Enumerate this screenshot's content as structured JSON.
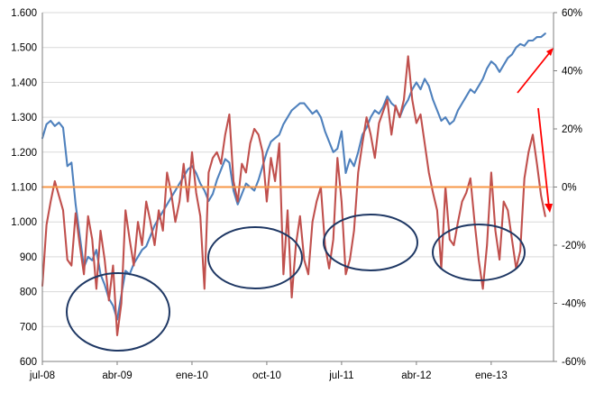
{
  "chart_data": {
    "type": "line",
    "grid": "horizontal",
    "legend": "none",
    "x_tick_labels": [
      "jul-08",
      "abr-09",
      "ene-10",
      "oct-10",
      "jul-11",
      "abr-12",
      "ene-13"
    ],
    "y_left": {
      "ylim": [
        600,
        1600
      ],
      "ticks": [
        600,
        700,
        800,
        900,
        1000,
        1100,
        1200,
        1300,
        1400,
        1500,
        1600
      ],
      "tick_labels": [
        "600",
        "700",
        "800",
        "900",
        "1.000",
        "1.100",
        "1.200",
        "1.300",
        "1.400",
        "1.500",
        "1.600"
      ]
    },
    "y_right": {
      "ylim": [
        -60,
        60
      ],
      "ticks": [
        -60,
        -40,
        -20,
        0,
        20,
        40,
        60
      ],
      "tick_labels": [
        "-60%",
        "-40%",
        "-20%",
        "0%",
        "20%",
        "40%",
        "60%"
      ]
    },
    "time_unit": "months since jul-08",
    "series": [
      {
        "color": "#4f81bd",
        "axis": "left",
        "points": [
          [
            0,
            1240
          ],
          [
            0.5,
            1280
          ],
          [
            1,
            1290
          ],
          [
            1.5,
            1275
          ],
          [
            2,
            1285
          ],
          [
            2.5,
            1270
          ],
          [
            3,
            1160
          ],
          [
            3.5,
            1170
          ],
          [
            4,
            1050
          ],
          [
            4.5,
            960
          ],
          [
            5,
            870
          ],
          [
            5.5,
            900
          ],
          [
            6,
            890
          ],
          [
            6.5,
            920
          ],
          [
            7,
            850
          ],
          [
            7.5,
            820
          ],
          [
            8,
            780
          ],
          [
            8.5,
            760
          ],
          [
            9,
            720
          ],
          [
            9.5,
            790
          ],
          [
            10,
            860
          ],
          [
            10.5,
            850
          ],
          [
            11,
            880
          ],
          [
            11.5,
            900
          ],
          [
            12,
            920
          ],
          [
            12.5,
            930
          ],
          [
            13,
            960
          ],
          [
            13.5,
            990
          ],
          [
            14,
            1010
          ],
          [
            14.5,
            1030
          ],
          [
            15,
            1050
          ],
          [
            15.5,
            1070
          ],
          [
            16,
            1090
          ],
          [
            16.5,
            1110
          ],
          [
            17,
            1130
          ],
          [
            17.5,
            1150
          ],
          [
            18,
            1160
          ],
          [
            18.5,
            1140
          ],
          [
            19,
            1110
          ],
          [
            19.5,
            1090
          ],
          [
            20,
            1060
          ],
          [
            20.5,
            1080
          ],
          [
            21,
            1120
          ],
          [
            21.5,
            1150
          ],
          [
            22,
            1180
          ],
          [
            22.5,
            1170
          ],
          [
            23,
            1090
          ],
          [
            23.5,
            1050
          ],
          [
            24,
            1080
          ],
          [
            24.5,
            1110
          ],
          [
            25,
            1100
          ],
          [
            25.5,
            1090
          ],
          [
            26,
            1120
          ],
          [
            26.5,
            1160
          ],
          [
            27,
            1200
          ],
          [
            27.5,
            1230
          ],
          [
            28,
            1240
          ],
          [
            28.5,
            1250
          ],
          [
            29,
            1280
          ],
          [
            29.5,
            1300
          ],
          [
            30,
            1320
          ],
          [
            30.5,
            1330
          ],
          [
            31,
            1340
          ],
          [
            31.5,
            1340
          ],
          [
            32,
            1325
          ],
          [
            32.5,
            1310
          ],
          [
            33,
            1320
          ],
          [
            33.5,
            1300
          ],
          [
            34,
            1260
          ],
          [
            34.5,
            1230
          ],
          [
            35,
            1200
          ],
          [
            35.5,
            1210
          ],
          [
            36,
            1260
          ],
          [
            36.5,
            1140
          ],
          [
            37,
            1180
          ],
          [
            37.5,
            1160
          ],
          [
            38,
            1200
          ],
          [
            38.5,
            1250
          ],
          [
            39,
            1270
          ],
          [
            39.5,
            1300
          ],
          [
            40,
            1320
          ],
          [
            40.5,
            1310
          ],
          [
            41,
            1330
          ],
          [
            41.5,
            1360
          ],
          [
            42,
            1340
          ],
          [
            42.5,
            1330
          ],
          [
            43,
            1300
          ],
          [
            43.5,
            1330
          ],
          [
            44,
            1350
          ],
          [
            44.5,
            1380
          ],
          [
            45,
            1400
          ],
          [
            45.5,
            1380
          ],
          [
            46,
            1410
          ],
          [
            46.5,
            1390
          ],
          [
            47,
            1350
          ],
          [
            47.5,
            1320
          ],
          [
            48,
            1290
          ],
          [
            48.5,
            1300
          ],
          [
            49,
            1280
          ],
          [
            49.5,
            1290
          ],
          [
            50,
            1320
          ],
          [
            50.5,
            1340
          ],
          [
            51,
            1360
          ],
          [
            51.5,
            1380
          ],
          [
            52,
            1370
          ],
          [
            52.5,
            1390
          ],
          [
            53,
            1410
          ],
          [
            53.5,
            1440
          ],
          [
            54,
            1460
          ],
          [
            54.5,
            1450
          ],
          [
            55,
            1430
          ],
          [
            55.5,
            1450
          ],
          [
            56,
            1470
          ],
          [
            56.5,
            1480
          ],
          [
            57,
            1500
          ],
          [
            57.5,
            1510
          ],
          [
            58,
            1505
          ],
          [
            58.5,
            1520
          ],
          [
            59,
            1520
          ],
          [
            59.5,
            1530
          ],
          [
            60,
            1530
          ],
          [
            60.5,
            1540
          ]
        ]
      },
      {
        "color": "#c0504d",
        "axis": "right",
        "points": [
          [
            0,
            -34
          ],
          [
            0.5,
            -13
          ],
          [
            1,
            -5
          ],
          [
            1.5,
            2
          ],
          [
            2,
            -3
          ],
          [
            2.5,
            -8
          ],
          [
            3,
            -25
          ],
          [
            3.5,
            -27
          ],
          [
            4,
            -9
          ],
          [
            4.5,
            -20
          ],
          [
            5,
            -30
          ],
          [
            5.5,
            -10
          ],
          [
            6,
            -18
          ],
          [
            6.5,
            -35
          ],
          [
            7,
            -15
          ],
          [
            7.5,
            -25
          ],
          [
            8,
            -39
          ],
          [
            8.5,
            -27
          ],
          [
            9,
            -51
          ],
          [
            9.5,
            -40
          ],
          [
            10,
            -8
          ],
          [
            10.5,
            -18
          ],
          [
            11,
            -27
          ],
          [
            11.5,
            -12
          ],
          [
            12,
            -20
          ],
          [
            12.5,
            -5
          ],
          [
            13,
            -12
          ],
          [
            13.5,
            -20
          ],
          [
            14,
            -8
          ],
          [
            14.5,
            -15
          ],
          [
            15,
            5
          ],
          [
            15.5,
            -2
          ],
          [
            16,
            -12
          ],
          [
            16.5,
            -5
          ],
          [
            17,
            8
          ],
          [
            17.5,
            -5
          ],
          [
            18,
            12
          ],
          [
            18.5,
            -2
          ],
          [
            19,
            -10
          ],
          [
            19.5,
            -35
          ],
          [
            20,
            5
          ],
          [
            20.5,
            10
          ],
          [
            21,
            12
          ],
          [
            21.5,
            8
          ],
          [
            22,
            18
          ],
          [
            22.5,
            25
          ],
          [
            23,
            2
          ],
          [
            23.5,
            -5
          ],
          [
            24,
            8
          ],
          [
            24.5,
            5
          ],
          [
            25,
            15
          ],
          [
            25.5,
            20
          ],
          [
            26,
            18
          ],
          [
            26.5,
            12
          ],
          [
            27,
            -5
          ],
          [
            27.5,
            10
          ],
          [
            28,
            2
          ],
          [
            28.5,
            15
          ],
          [
            29,
            -30
          ],
          [
            29.5,
            -8
          ],
          [
            30,
            -38
          ],
          [
            30.5,
            -20
          ],
          [
            31,
            -10
          ],
          [
            31.5,
            -25
          ],
          [
            32,
            -30
          ],
          [
            32.5,
            -12
          ],
          [
            33,
            -5
          ],
          [
            33.5,
            0
          ],
          [
            34,
            -20
          ],
          [
            34.5,
            -28
          ],
          [
            35,
            -18
          ],
          [
            35.5,
            10
          ],
          [
            36,
            -5
          ],
          [
            36.5,
            -30
          ],
          [
            37,
            -25
          ],
          [
            37.5,
            -15
          ],
          [
            38,
            5
          ],
          [
            38.5,
            15
          ],
          [
            39,
            24
          ],
          [
            39.5,
            18
          ],
          [
            40,
            10
          ],
          [
            40.5,
            22
          ],
          [
            41,
            26
          ],
          [
            41.5,
            30
          ],
          [
            42,
            18
          ],
          [
            42.5,
            28
          ],
          [
            43,
            24
          ],
          [
            43.5,
            30
          ],
          [
            44,
            45
          ],
          [
            44.5,
            30
          ],
          [
            45,
            22
          ],
          [
            45.5,
            25
          ],
          [
            46,
            15
          ],
          [
            46.5,
            5
          ],
          [
            47,
            -2
          ],
          [
            47.5,
            -8
          ],
          [
            48,
            -28
          ],
          [
            48.5,
            0
          ],
          [
            49,
            -18
          ],
          [
            49.5,
            -20
          ],
          [
            50,
            -12
          ],
          [
            50.5,
            -5
          ],
          [
            51,
            -2
          ],
          [
            51.5,
            3
          ],
          [
            52,
            -12
          ],
          [
            52.5,
            -25
          ],
          [
            53,
            -35
          ],
          [
            53.5,
            -20
          ],
          [
            54,
            5
          ],
          [
            54.5,
            -15
          ],
          [
            55,
            -25
          ],
          [
            55.5,
            -5
          ],
          [
            56,
            -8
          ],
          [
            56.5,
            -18
          ],
          [
            57,
            -28
          ],
          [
            57.5,
            -22
          ],
          [
            58,
            3
          ],
          [
            58.5,
            12
          ],
          [
            59,
            18
          ],
          [
            59.5,
            8
          ],
          [
            60,
            -3
          ],
          [
            60.5,
            -10
          ]
        ]
      },
      {
        "color": "#f79646",
        "axis": "right",
        "points": [
          [
            0,
            0
          ],
          [
            60.5,
            0
          ]
        ]
      }
    ]
  }
}
